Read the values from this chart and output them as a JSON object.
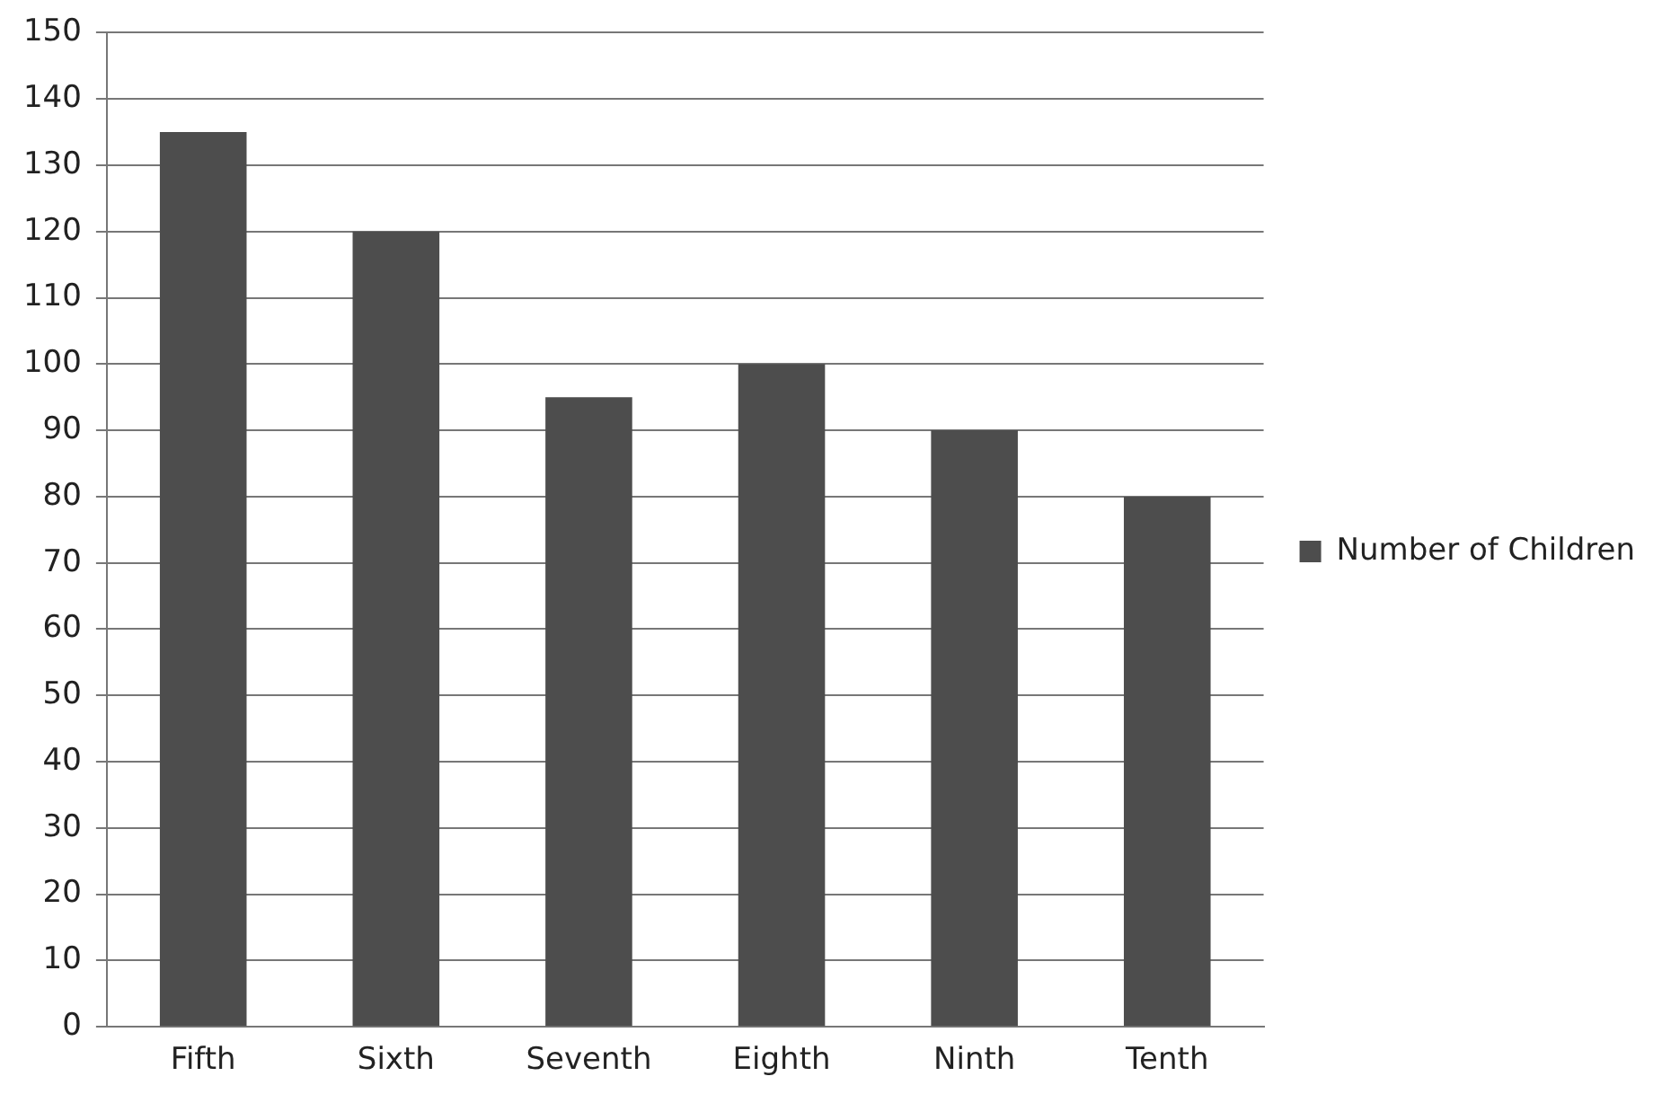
{
  "chart_data": {
    "type": "bar",
    "categories": [
      "Fifth",
      "Sixth",
      "Seventh",
      "Eighth",
      "Ninth",
      "Tenth"
    ],
    "series": [
      {
        "name": "Number of Children",
        "color": "#4d4d4d",
        "values": [
          135,
          120,
          95,
          100,
          90,
          80
        ]
      }
    ],
    "ylim": [
      0,
      150
    ],
    "yticks": [
      0,
      10,
      20,
      30,
      40,
      50,
      60,
      70,
      80,
      90,
      100,
      110,
      120,
      130,
      140,
      150
    ],
    "grid": "y",
    "legend": "right"
  }
}
